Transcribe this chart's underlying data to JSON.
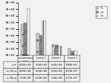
{
  "categories": [
    "Radon-\ncontaminated\npoint",
    "Control 1",
    "Control 2",
    "Control 3"
  ],
  "cat_short": [
    "Radon-\ncontaminated\npoint",
    "Control 1",
    "Control 2",
    "Control 3"
  ],
  "series": [
    {
      "label": "To...",
      "values": [
        465000000.0,
        328000000.0,
        160000000.0,
        98000000.0
      ],
      "color": "#c8c8c8",
      "hatch": ".."
    },
    {
      "label": "On...",
      "values": [
        490000000.0,
        300000000.0,
        155000000.0,
        62000000.0
      ],
      "color": "#888888",
      "hatch": "//"
    },
    {
      "label": "On...",
      "values": [
        710000000.0,
        520000000.0,
        130000000.0,
        67500000.0
      ],
      "color": "#e8e8e8",
      "hatch": "||"
    }
  ],
  "ylim": [
    0,
    800000000.0
  ],
  "yticks": [
    0,
    100000000.0,
    200000000.0,
    300000000.0,
    400000000.0,
    500000000.0,
    600000000.0,
    700000000.0,
    800000000.0
  ],
  "background_color": "#f2f2f2",
  "bar_width": 0.2,
  "table_col_labels": [
    "Radon-\ncontaminated\npoint",
    "Control 1",
    "Control 2",
    "Control 3"
  ],
  "table_row_labels": [
    "...col",
    "...b 15nm",
    "...b 35nm"
  ],
  "table_data": [
    [
      "4.65E+08",
      "3.28E+08",
      "1.60E+08",
      "9.80E+07"
    ],
    [
      "4.90E+08",
      "3.00E+08",
      "1.55E+08",
      "6.20E+07"
    ],
    [
      "7.10E+08",
      "5.20E+08",
      "1.30E+08",
      "6.75E+07"
    ]
  ]
}
